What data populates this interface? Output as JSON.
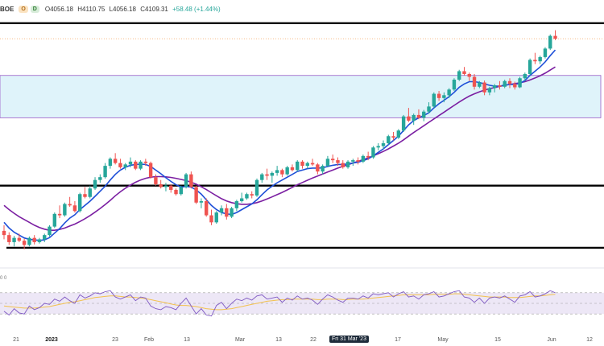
{
  "header": {
    "symbol": "BOE",
    "badge_o": "O",
    "badge_d": "D",
    "open": "O4056.18",
    "high": "H4110.75",
    "low": "L4056.18",
    "close": "C4109.31",
    "change": "+58.48 (+1.44%)"
  },
  "rsi_header": "0 0",
  "crosshair_label": "Fri 31 Mar '23",
  "chart_data": {
    "type": "candlestick",
    "x_tick_labels": [
      "21",
      "2023",
      "23",
      "Feb",
      "13",
      "Mar",
      "13",
      "22",
      "17",
      "May",
      "15",
      "Jun",
      "12"
    ],
    "candles": [
      [
        3840,
        3860,
        3810,
        3825
      ],
      [
        3825,
        3835,
        3790,
        3800
      ],
      [
        3800,
        3822,
        3785,
        3815
      ],
      [
        3815,
        3830,
        3800,
        3805
      ],
      [
        3805,
        3812,
        3775,
        3790
      ],
      [
        3790,
        3820,
        3785,
        3815
      ],
      [
        3815,
        3825,
        3792,
        3800
      ],
      [
        3800,
        3815,
        3795,
        3810
      ],
      [
        3810,
        3830,
        3800,
        3825
      ],
      [
        3825,
        3860,
        3820,
        3855
      ],
      [
        3855,
        3905,
        3850,
        3900
      ],
      [
        3900,
        3930,
        3885,
        3895
      ],
      [
        3895,
        3940,
        3890,
        3935
      ],
      [
        3935,
        3960,
        3925,
        3930
      ],
      [
        3930,
        3945,
        3905,
        3910
      ],
      [
        3910,
        3975,
        3905,
        3970
      ],
      [
        3970,
        3995,
        3955,
        3960
      ],
      [
        3960,
        4000,
        3955,
        3990
      ],
      [
        3990,
        4030,
        3985,
        4020
      ],
      [
        4020,
        4040,
        4010,
        4030
      ],
      [
        4030,
        4080,
        4025,
        4070
      ],
      [
        4070,
        4100,
        4060,
        4095
      ],
      [
        4095,
        4115,
        4075,
        4080
      ],
      [
        4080,
        4095,
        4060,
        4065
      ],
      [
        4065,
        4080,
        4055,
        4075
      ],
      [
        4075,
        4100,
        4065,
        4085
      ],
      [
        4085,
        4090,
        4055,
        4060
      ],
      [
        4060,
        4090,
        4055,
        4085
      ],
      [
        4085,
        4095,
        4070,
        4080
      ],
      [
        4080,
        4085,
        4025,
        4030
      ],
      [
        4030,
        4040,
        4000,
        4005
      ],
      [
        4005,
        4020,
        3990,
        3995
      ],
      [
        3995,
        4010,
        3980,
        4000
      ],
      [
        4000,
        4005,
        3975,
        3985
      ],
      [
        3985,
        3990,
        3965,
        3970
      ],
      [
        3970,
        4000,
        3965,
        3995
      ],
      [
        3995,
        4045,
        3990,
        4040
      ],
      [
        4040,
        4050,
        3990,
        3995
      ],
      [
        3995,
        4000,
        3935,
        3940
      ],
      [
        3940,
        3955,
        3920,
        3945
      ],
      [
        3945,
        3955,
        3890,
        3895
      ],
      [
        3895,
        3915,
        3860,
        3870
      ],
      [
        3870,
        3910,
        3865,
        3905
      ],
      [
        3905,
        3930,
        3895,
        3920
      ],
      [
        3920,
        3935,
        3880,
        3890
      ],
      [
        3890,
        3925,
        3885,
        3920
      ],
      [
        3920,
        3950,
        3910,
        3945
      ],
      [
        3945,
        3975,
        3940,
        3955
      ],
      [
        3955,
        3975,
        3950,
        3970
      ],
      [
        3970,
        3980,
        3955,
        3965
      ],
      [
        3965,
        4025,
        3960,
        4020
      ],
      [
        4020,
        4045,
        4010,
        4040
      ],
      [
        4040,
        4060,
        4020,
        4035
      ],
      [
        4035,
        4050,
        4010,
        4045
      ],
      [
        4045,
        4070,
        4035,
        4055
      ],
      [
        4055,
        4060,
        4030,
        4040
      ],
      [
        4040,
        4070,
        4035,
        4065
      ],
      [
        4065,
        4075,
        4050,
        4055
      ],
      [
        4055,
        4090,
        4050,
        4085
      ],
      [
        4085,
        4090,
        4060,
        4070
      ],
      [
        4070,
        4085,
        4060,
        4080
      ],
      [
        4080,
        4095,
        4070,
        4075
      ],
      [
        4075,
        4080,
        4040,
        4050
      ],
      [
        4050,
        4075,
        4040,
        4070
      ],
      [
        4070,
        4105,
        4065,
        4095
      ],
      [
        4095,
        4110,
        4080,
        4090
      ],
      [
        4090,
        4100,
        4070,
        4080
      ],
      [
        4080,
        4090,
        4060,
        4065
      ],
      [
        4065,
        4090,
        4060,
        4085
      ],
      [
        4085,
        4095,
        4070,
        4090
      ],
      [
        4090,
        4100,
        4075,
        4085
      ],
      [
        4085,
        4110,
        4080,
        4105
      ],
      [
        4105,
        4120,
        4090,
        4100
      ],
      [
        4100,
        4140,
        4095,
        4135
      ],
      [
        4135,
        4150,
        4125,
        4140
      ],
      [
        4140,
        4160,
        4130,
        4150
      ],
      [
        4150,
        4180,
        4145,
        4175
      ],
      [
        4175,
        4190,
        4160,
        4170
      ],
      [
        4170,
        4200,
        4165,
        4195
      ],
      [
        4195,
        4250,
        4190,
        4245
      ],
      [
        4245,
        4275,
        4225,
        4230
      ],
      [
        4230,
        4255,
        4215,
        4250
      ],
      [
        4250,
        4270,
        4235,
        4240
      ],
      [
        4240,
        4268,
        4228,
        4262
      ],
      [
        4262,
        4295,
        4255,
        4280
      ],
      [
        4280,
        4330,
        4275,
        4325
      ],
      [
        4325,
        4335,
        4300,
        4310
      ],
      [
        4310,
        4330,
        4295,
        4320
      ],
      [
        4320,
        4345,
        4310,
        4340
      ],
      [
        4340,
        4380,
        4335,
        4375
      ],
      [
        4375,
        4410,
        4370,
        4405
      ],
      [
        4405,
        4420,
        4390,
        4395
      ],
      [
        4395,
        4400,
        4370,
        4385
      ],
      [
        4385,
        4395,
        4340,
        4350
      ],
      [
        4350,
        4370,
        4345,
        4365
      ],
      [
        4365,
        4372,
        4320,
        4330
      ],
      [
        4330,
        4350,
        4320,
        4345
      ],
      [
        4345,
        4360,
        4330,
        4355
      ],
      [
        4355,
        4370,
        4340,
        4350
      ],
      [
        4350,
        4375,
        4345,
        4370
      ],
      [
        4370,
        4380,
        4345,
        4360
      ],
      [
        4360,
        4368,
        4340,
        4348
      ],
      [
        4348,
        4385,
        4345,
        4380
      ],
      [
        4380,
        4400,
        4370,
        4395
      ],
      [
        4395,
        4450,
        4390,
        4445
      ],
      [
        4445,
        4470,
        4430,
        4440
      ],
      [
        4440,
        4460,
        4430,
        4455
      ],
      [
        4455,
        4490,
        4450,
        4485
      ],
      [
        4485,
        4535,
        4480,
        4530
      ],
      [
        4530,
        4550,
        4515,
        4520
      ]
    ],
    "moving_averages": {
      "fast": [
        3870,
        3850,
        3835,
        3825,
        3815,
        3810,
        3808,
        3806,
        3808,
        3816,
        3832,
        3848,
        3868,
        3885,
        3897,
        3915,
        3930,
        3945,
        3962,
        3980,
        3998,
        4020,
        4040,
        4055,
        4065,
        4072,
        4075,
        4076,
        4075,
        4068,
        4055,
        4042,
        4028,
        4015,
        4003,
        3995,
        3997,
        3995,
        3985,
        3970,
        3950,
        3930,
        3915,
        3905,
        3900,
        3898,
        3905,
        3915,
        3925,
        3935,
        3950,
        3968,
        3985,
        3998,
        4010,
        4020,
        4030,
        4040,
        4050,
        4055,
        4060,
        4062,
        4062,
        4063,
        4068,
        4072,
        4075,
        4075,
        4077,
        4080,
        4083,
        4088,
        4095,
        4105,
        4118,
        4130,
        4145,
        4160,
        4175,
        4195,
        4215,
        4230,
        4240,
        4248,
        4258,
        4275,
        4290,
        4302,
        4315,
        4330,
        4348,
        4360,
        4368,
        4368,
        4365,
        4360,
        4355,
        4352,
        4352,
        4356,
        4358,
        4358,
        4362,
        4372,
        4390,
        4405,
        4420,
        4438,
        4460,
        4480
      ],
      "slow": [
        3930,
        3915,
        3902,
        3890,
        3880,
        3870,
        3860,
        3852,
        3846,
        3842,
        3842,
        3845,
        3850,
        3857,
        3864,
        3873,
        3883,
        3894,
        3906,
        3919,
        3933,
        3948,
        3964,
        3978,
        3991,
        4002,
        4012,
        4020,
        4026,
        4030,
        4032,
        4032,
        4031,
        4029,
        4026,
        4022,
        4018,
        4012,
        4005,
        3996,
        3986,
        3975,
        3964,
        3954,
        3946,
        3940,
        3936,
        3934,
        3934,
        3936,
        3940,
        3946,
        3953,
        3960,
        3968,
        3976,
        3985,
        3994,
        4003,
        4011,
        4019,
        4027,
        4034,
        4041,
        4048,
        4055,
        4062,
        4068,
        4074,
        4080,
        4086,
        4092,
        4098,
        4105,
        4113,
        4121,
        4130,
        4140,
        4150,
        4162,
        4175,
        4188,
        4200,
        4212,
        4224,
        4236,
        4248,
        4260,
        4272,
        4284,
        4296,
        4307,
        4317,
        4325,
        4332,
        4338,
        4343,
        4347,
        4351,
        4355,
        4358,
        4361,
        4364,
        4368,
        4374,
        4381,
        4389,
        4398,
        4409,
        4420
      ]
    },
    "horizontal_lines": [
      4575,
      4000,
      3780
    ],
    "dashed_line": 4520,
    "zone": [
      4390,
      4240
    ],
    "y_range": [
      3740,
      4600
    ],
    "rsi": {
      "values": [
        35,
        28,
        40,
        32,
        30,
        45,
        38,
        42,
        50,
        48,
        58,
        54,
        62,
        55,
        50,
        66,
        60,
        64,
        70,
        68,
        72,
        74,
        62,
        58,
        62,
        66,
        55,
        62,
        60,
        45,
        40,
        38,
        44,
        42,
        38,
        50,
        60,
        45,
        30,
        40,
        28,
        26,
        46,
        52,
        40,
        50,
        58,
        55,
        60,
        56,
        64,
        66,
        58,
        60,
        62,
        52,
        60,
        56,
        64,
        58,
        60,
        56,
        48,
        58,
        66,
        62,
        56,
        52,
        60,
        60,
        58,
        64,
        60,
        68,
        66,
        68,
        70,
        62,
        68,
        72,
        62,
        64,
        58,
        66,
        68,
        72,
        62,
        64,
        68,
        72,
        74,
        62,
        60,
        52,
        60,
        50,
        60,
        62,
        60,
        64,
        58,
        52,
        64,
        66,
        72,
        62,
        64,
        68,
        74,
        70
      ],
      "ma": [
        45,
        44,
        43,
        42,
        41,
        41,
        41,
        42,
        43,
        44,
        46,
        48,
        50,
        52,
        53,
        55,
        57,
        59,
        61,
        62,
        63,
        64,
        64,
        63,
        62,
        62,
        61,
        60,
        59,
        57,
        55,
        53,
        51,
        49,
        47,
        46,
        46,
        45,
        44,
        42,
        40,
        39,
        38,
        38,
        39,
        40,
        42,
        44,
        46,
        48,
        50,
        52,
        54,
        55,
        56,
        57,
        57,
        58,
        58,
        58,
        58,
        58,
        57,
        57,
        58,
        58,
        58,
        57,
        57,
        58,
        58,
        58,
        59,
        60,
        61,
        62,
        63,
        64,
        65,
        66,
        66,
        66,
        66,
        66,
        66,
        67,
        67,
        67,
        67,
        68,
        68,
        67,
        66,
        65,
        64,
        63,
        62,
        62,
        62,
        62,
        61,
        61,
        61,
        62,
        63,
        64,
        64,
        65,
        66,
        67
      ],
      "y_range": [
        0,
        100
      ]
    }
  }
}
